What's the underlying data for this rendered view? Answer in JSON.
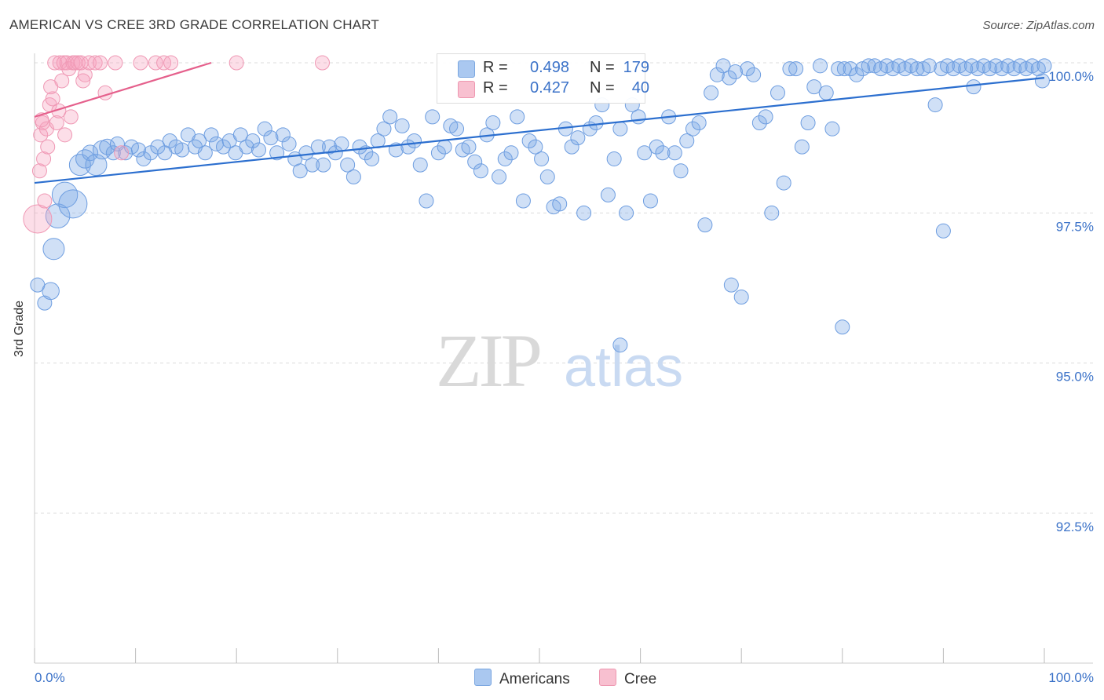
{
  "title": "AMERICAN VS CREE 3RD GRADE CORRELATION CHART",
  "source": "Source: ZipAtlas.com",
  "watermark": {
    "zip": "ZIP",
    "atlas": "atlas"
  },
  "legend": {
    "rows": [
      {
        "r_label": "R =",
        "r_value": "0.498",
        "n_label": "N =",
        "n_value": "179",
        "color": "#aac8f0",
        "border": "#7aa6e0"
      },
      {
        "r_label": "R =",
        "r_value": "0.427",
        "n_label": "N =",
        "n_value": "40",
        "color": "#f8c0d0",
        "border": "#ee97b0"
      }
    ]
  },
  "bottom_legend": {
    "americans": "Americans",
    "cree": "Cree"
  },
  "colors": {
    "blue": "#5b93dc",
    "blue_line": "#2c6fcf",
    "pink": "#ef8aa8",
    "pink_line": "#e5608c",
    "axis_text": "#3b72c8",
    "grid": "#dcdcdc"
  },
  "chart_data": {
    "type": "scatter",
    "title": "AMERICAN VS CREE 3RD GRADE CORRELATION CHART",
    "xlabel": "",
    "ylabel": "3rd Grade",
    "xlim": [
      0,
      100
    ],
    "ylim": [
      90.0,
      100.2
    ],
    "x_tick_labels": [
      "0.0%",
      "100.0%"
    ],
    "y_ticks": [
      92.5,
      95.0,
      97.5,
      100.0
    ],
    "y_tick_labels": [
      "92.5%",
      "95.0%",
      "97.5%",
      "100.0%"
    ],
    "grid": "horizontal dashed",
    "legend_position": "top-center",
    "series": [
      {
        "name": "Americans",
        "r": 0.498,
        "n": 179,
        "trend": {
          "x": [
            0,
            100
          ],
          "y": [
            98.0,
            99.75
          ]
        },
        "points": [
          [
            0.3,
            96.3,
            1
          ],
          [
            1.0,
            96.0,
            1
          ],
          [
            1.6,
            96.2,
            1.2
          ],
          [
            1.9,
            96.9,
            1.5
          ],
          [
            2.3,
            97.45,
            1.7
          ],
          [
            3.0,
            97.8,
            1.8
          ],
          [
            3.8,
            97.65,
            2
          ],
          [
            4.5,
            98.3,
            1.5
          ],
          [
            5.0,
            98.4,
            1.3
          ],
          [
            5.5,
            98.5,
            1.1
          ],
          [
            6.1,
            98.3,
            1.5
          ],
          [
            6.7,
            98.55,
            1.3
          ],
          [
            7.2,
            98.6,
            1.1
          ],
          [
            7.8,
            98.5,
            1
          ],
          [
            8.2,
            98.65,
            1
          ],
          [
            9.0,
            98.5,
            1
          ],
          [
            9.6,
            98.6,
            1
          ],
          [
            10.3,
            98.55,
            1
          ],
          [
            10.8,
            98.4,
            1
          ],
          [
            11.5,
            98.5,
            1
          ],
          [
            12.2,
            98.6,
            1
          ],
          [
            12.9,
            98.5,
            1
          ],
          [
            13.4,
            98.7,
            1
          ],
          [
            14.0,
            98.6,
            1
          ],
          [
            14.6,
            98.55,
            1
          ],
          [
            15.2,
            98.8,
            1
          ],
          [
            15.9,
            98.6,
            1
          ],
          [
            16.3,
            98.7,
            1
          ],
          [
            16.9,
            98.5,
            1
          ],
          [
            17.5,
            98.8,
            1
          ],
          [
            18.0,
            98.65,
            1
          ],
          [
            18.7,
            98.6,
            1
          ],
          [
            19.3,
            98.7,
            1
          ],
          [
            19.9,
            98.5,
            1
          ],
          [
            20.4,
            98.8,
            1
          ],
          [
            21.0,
            98.6,
            1
          ],
          [
            21.6,
            98.7,
            1
          ],
          [
            22.2,
            98.55,
            1
          ],
          [
            22.8,
            98.9,
            1
          ],
          [
            23.4,
            98.75,
            1
          ],
          [
            24.0,
            98.5,
            1
          ],
          [
            24.6,
            98.8,
            1
          ],
          [
            25.2,
            98.65,
            1
          ],
          [
            25.8,
            98.4,
            1
          ],
          [
            26.3,
            98.2,
            1
          ],
          [
            26.9,
            98.5,
            1
          ],
          [
            27.5,
            98.3,
            1
          ],
          [
            28.1,
            98.6,
            1
          ],
          [
            28.6,
            98.3,
            1
          ],
          [
            29.2,
            98.6,
            1
          ],
          [
            29.8,
            98.5,
            1
          ],
          [
            30.4,
            98.65,
            1
          ],
          [
            31.0,
            98.3,
            1
          ],
          [
            31.6,
            98.1,
            1
          ],
          [
            32.2,
            98.6,
            1
          ],
          [
            32.8,
            98.5,
            1
          ],
          [
            33.4,
            98.4,
            1
          ],
          [
            34.0,
            98.7,
            1
          ],
          [
            34.6,
            98.9,
            1
          ],
          [
            35.2,
            99.1,
            1
          ],
          [
            35.8,
            98.55,
            1
          ],
          [
            36.4,
            98.95,
            1
          ],
          [
            37.0,
            98.6,
            1
          ],
          [
            37.6,
            98.7,
            1
          ],
          [
            38.2,
            98.3,
            1
          ],
          [
            38.8,
            97.7,
            1
          ],
          [
            39.4,
            99.1,
            1
          ],
          [
            40.0,
            98.5,
            1
          ],
          [
            40.6,
            98.6,
            1
          ],
          [
            41.2,
            98.95,
            1
          ],
          [
            41.8,
            98.9,
            1
          ],
          [
            42.4,
            98.55,
            1
          ],
          [
            43.0,
            98.6,
            1
          ],
          [
            43.6,
            98.35,
            1
          ],
          [
            44.2,
            98.2,
            1
          ],
          [
            44.8,
            98.8,
            1
          ],
          [
            45.4,
            99.0,
            1
          ],
          [
            46.0,
            98.1,
            1
          ],
          [
            46.6,
            98.4,
            1
          ],
          [
            47.2,
            98.5,
            1
          ],
          [
            47.8,
            99.1,
            1
          ],
          [
            48.4,
            97.7,
            1
          ],
          [
            49.0,
            98.7,
            1
          ],
          [
            49.6,
            98.6,
            1
          ],
          [
            50.2,
            98.4,
            1
          ],
          [
            50.8,
            98.1,
            1
          ],
          [
            51.4,
            97.6,
            1
          ],
          [
            52.0,
            97.65,
            1
          ],
          [
            52.6,
            98.9,
            1
          ],
          [
            53.2,
            98.6,
            1
          ],
          [
            53.8,
            98.75,
            1
          ],
          [
            54.4,
            97.5,
            1
          ],
          [
            55.0,
            98.9,
            1
          ],
          [
            55.6,
            99.0,
            1
          ],
          [
            56.2,
            99.3,
            1
          ],
          [
            56.8,
            97.8,
            1
          ],
          [
            57.4,
            98.4,
            1
          ],
          [
            58.0,
            98.9,
            1
          ],
          [
            58.6,
            97.5,
            1
          ],
          [
            59.2,
            99.3,
            1
          ],
          [
            59.8,
            99.1,
            1
          ],
          [
            60.4,
            98.5,
            1
          ],
          [
            61.0,
            97.7,
            1
          ],
          [
            61.6,
            98.6,
            1
          ],
          [
            62.2,
            98.5,
            1
          ],
          [
            62.8,
            99.1,
            1
          ],
          [
            63.4,
            98.5,
            1
          ],
          [
            64.0,
            98.2,
            1
          ],
          [
            64.6,
            98.7,
            1
          ],
          [
            65.2,
            98.9,
            1
          ],
          [
            65.8,
            99.0,
            1
          ],
          [
            66.4,
            97.3,
            1
          ],
          [
            67.0,
            99.5,
            1
          ],
          [
            67.6,
            99.8,
            1
          ],
          [
            68.2,
            99.95,
            1
          ],
          [
            68.8,
            99.75,
            1
          ],
          [
            69.4,
            99.85,
            1
          ],
          [
            69.0,
            96.3,
            1
          ],
          [
            70.0,
            96.1,
            1
          ],
          [
            70.6,
            99.9,
            1
          ],
          [
            71.2,
            99.8,
            1
          ],
          [
            71.8,
            99.0,
            1
          ],
          [
            72.4,
            99.1,
            1
          ],
          [
            73.0,
            97.5,
            1
          ],
          [
            73.6,
            99.5,
            1
          ],
          [
            74.2,
            98.0,
            1
          ],
          [
            74.8,
            99.9,
            1
          ],
          [
            75.4,
            99.9,
            1
          ],
          [
            76.0,
            98.6,
            1
          ],
          [
            76.6,
            99.0,
            1
          ],
          [
            77.2,
            99.6,
            1
          ],
          [
            77.8,
            99.95,
            1
          ],
          [
            78.4,
            99.5,
            1
          ],
          [
            79.0,
            98.9,
            1
          ],
          [
            79.6,
            99.9,
            1
          ],
          [
            80.2,
            99.9,
            1
          ],
          [
            80.8,
            99.9,
            1
          ],
          [
            81.4,
            99.8,
            1
          ],
          [
            82.0,
            99.9,
            1
          ],
          [
            82.6,
            99.95,
            1
          ],
          [
            83.2,
            99.95,
            1
          ],
          [
            83.8,
            99.9,
            1
          ],
          [
            84.4,
            99.95,
            1
          ],
          [
            85.0,
            99.9,
            1
          ],
          [
            85.6,
            99.95,
            1
          ],
          [
            86.2,
            99.9,
            1
          ],
          [
            86.8,
            99.95,
            1
          ],
          [
            87.4,
            99.9,
            1
          ],
          [
            88.0,
            99.9,
            1
          ],
          [
            88.6,
            99.95,
            1
          ],
          [
            89.2,
            99.3,
            1
          ],
          [
            89.8,
            99.9,
            1
          ],
          [
            90.4,
            99.95,
            1
          ],
          [
            91.0,
            99.9,
            1
          ],
          [
            91.6,
            99.95,
            1
          ],
          [
            92.2,
            99.9,
            1
          ],
          [
            92.8,
            99.95,
            1
          ],
          [
            93.4,
            99.9,
            1
          ],
          [
            94.0,
            99.95,
            1
          ],
          [
            94.6,
            99.9,
            1
          ],
          [
            95.2,
            99.95,
            1
          ],
          [
            95.8,
            99.9,
            1
          ],
          [
            96.4,
            99.95,
            1
          ],
          [
            97.0,
            99.9,
            1
          ],
          [
            97.6,
            99.95,
            1
          ],
          [
            98.2,
            99.9,
            1
          ],
          [
            98.8,
            99.95,
            1
          ],
          [
            99.4,
            99.9,
            1
          ],
          [
            100.0,
            99.95,
            1
          ],
          [
            99.8,
            99.7,
            1
          ],
          [
            80.0,
            95.6,
            1
          ],
          [
            58.0,
            95.3,
            1
          ],
          [
            90.0,
            97.2,
            1
          ],
          [
            93.0,
            99.6,
            1
          ]
        ]
      },
      {
        "name": "Cree",
        "r": 0.427,
        "n": 40,
        "trend": {
          "x": [
            0,
            17.5
          ],
          "y": [
            99.1,
            100.0
          ]
        },
        "points": [
          [
            0.3,
            97.4,
            2
          ],
          [
            0.5,
            98.2,
            1
          ],
          [
            0.6,
            98.8,
            1
          ],
          [
            0.8,
            99.0,
            1
          ],
          [
            1.0,
            97.7,
            1
          ],
          [
            1.2,
            98.9,
            1
          ],
          [
            1.5,
            99.3,
            1
          ],
          [
            1.8,
            99.4,
            1
          ],
          [
            2.0,
            100.0,
            1
          ],
          [
            2.2,
            99.0,
            1
          ],
          [
            2.5,
            100.0,
            1
          ],
          [
            2.7,
            99.7,
            1
          ],
          [
            2.9,
            100.0,
            1
          ],
          [
            3.2,
            100.0,
            1
          ],
          [
            3.4,
            99.9,
            1
          ],
          [
            3.6,
            99.1,
            1
          ],
          [
            3.8,
            100.0,
            1
          ],
          [
            4.0,
            100.0,
            1
          ],
          [
            4.3,
            100.0,
            1
          ],
          [
            4.6,
            100.0,
            1
          ],
          [
            5.0,
            99.8,
            1
          ],
          [
            5.4,
            100.0,
            1
          ],
          [
            6.0,
            100.0,
            1
          ],
          [
            7.0,
            99.5,
            1
          ],
          [
            8.0,
            100.0,
            1
          ],
          [
            10.5,
            100.0,
            1
          ],
          [
            12.0,
            100.0,
            1
          ],
          [
            12.8,
            100.0,
            1
          ],
          [
            13.5,
            100.0,
            1
          ],
          [
            20.0,
            100.0,
            1
          ],
          [
            28.5,
            100.0,
            1
          ],
          [
            1.6,
            99.6,
            1
          ],
          [
            0.7,
            99.05,
            1
          ],
          [
            2.4,
            99.2,
            1
          ],
          [
            3.0,
            98.8,
            1
          ],
          [
            0.9,
            98.4,
            1
          ],
          [
            1.3,
            98.6,
            1
          ],
          [
            4.8,
            99.7,
            1
          ],
          [
            8.6,
            98.5,
            1
          ],
          [
            6.5,
            100.0,
            1
          ]
        ]
      }
    ]
  }
}
